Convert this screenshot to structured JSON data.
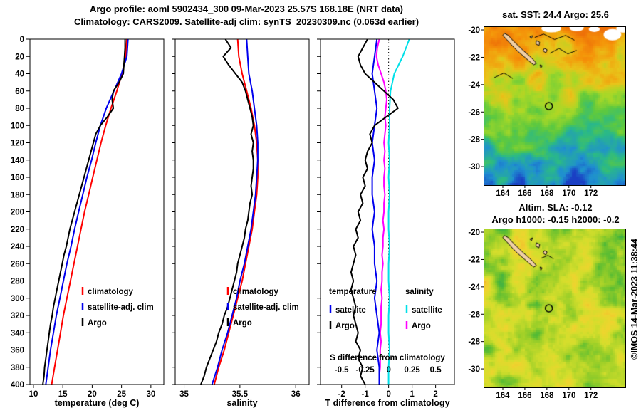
{
  "header": {
    "title_line1": "Argo profile: aoml 5902434_300 09-Mar-2023 25.57S 168.18E (NRT data)",
    "title_line2": "Climatology: CARS2009. Satellite-adj clim: synTS_20230309.nc (0.063d earlier)"
  },
  "watermark": "©IMOS 14-Mar-2023 11:38:44",
  "legends": {
    "profile": [
      {
        "label": "climatology",
        "color": "#ff0000"
      },
      {
        "label": "satellite-adj. clim",
        "color": "#0000ee"
      },
      {
        "label": "Argo",
        "color": "#000000"
      }
    ],
    "difference": {
      "col1_header": "temperature",
      "col2_header": "salinity",
      "col1": [
        {
          "label": "satellite",
          "color": "#0000ee"
        },
        {
          "label": "Argo",
          "color": "#000000"
        }
      ],
      "col2": [
        {
          "label": "satellite",
          "color": "#00e0e8"
        },
        {
          "label": "Argo",
          "color": "#ff00ff"
        }
      ]
    }
  },
  "map_islands": [
    [
      [
        164.15,
        -20.25
      ],
      [
        164.5,
        -20.4
      ],
      [
        164.95,
        -20.8
      ],
      [
        165.4,
        -21.15
      ],
      [
        165.85,
        -21.5
      ],
      [
        166.35,
        -21.85
      ],
      [
        166.8,
        -22.2
      ],
      [
        167.05,
        -22.45
      ],
      [
        166.8,
        -22.55
      ],
      [
        166.35,
        -22.25
      ],
      [
        165.85,
        -21.9
      ],
      [
        165.35,
        -21.55
      ],
      [
        164.85,
        -21.15
      ],
      [
        164.35,
        -20.7
      ],
      [
        164.0,
        -20.4
      ]
    ],
    [
      [
        166.45,
        -20.5
      ],
      [
        166.7,
        -20.42
      ],
      [
        166.6,
        -20.62
      ]
    ],
    [
      [
        167.05,
        -20.78
      ],
      [
        167.35,
        -20.9
      ],
      [
        167.28,
        -21.15
      ],
      [
        167.0,
        -21.02
      ]
    ],
    [
      [
        167.78,
        -21.35
      ],
      [
        168.02,
        -21.45
      ],
      [
        167.9,
        -21.68
      ],
      [
        167.65,
        -21.52
      ]
    ],
    [
      [
        167.38,
        -22.55
      ],
      [
        167.58,
        -22.62
      ],
      [
        167.45,
        -22.78
      ]
    ]
  ],
  "chart_data": [
    {
      "type": "line",
      "key": "temperature",
      "xlabel": "temperature (deg C)",
      "xlim": [
        9.4,
        32.2
      ],
      "ylim": [
        0,
        400
      ],
      "xticks": [
        10,
        15,
        20,
        25,
        30
      ],
      "ytick_step": 20,
      "ytick_labels": true,
      "series": [
        {
          "name": "climatology",
          "color": "#ff0000",
          "depth": [
            0,
            20,
            40,
            60,
            80,
            100,
            120,
            140,
            160,
            180,
            200,
            220,
            240,
            260,
            280,
            300,
            320,
            340,
            360,
            380,
            400
          ],
          "values": [
            25.9,
            25.7,
            25.1,
            24.2,
            23.2,
            22.3,
            21.5,
            20.8,
            20.1,
            19.4,
            18.7,
            18.1,
            17.5,
            16.9,
            16.3,
            15.7,
            15.1,
            14.6,
            14.1,
            13.6,
            13.1
          ]
        },
        {
          "name": "satellite-adj. clim",
          "color": "#0000ee",
          "depth": [
            0,
            20,
            40,
            60,
            80,
            100,
            120,
            140,
            160,
            180,
            200,
            220,
            240,
            260,
            280,
            300,
            320,
            340,
            360,
            380,
            400
          ],
          "values": [
            26.1,
            25.9,
            25.0,
            23.7,
            22.4,
            21.4,
            20.6,
            19.9,
            19.1,
            18.4,
            17.7,
            17.0,
            16.4,
            15.7,
            15.1,
            14.5,
            13.9,
            13.4,
            12.9,
            12.5,
            12.1
          ]
        },
        {
          "name": "Argo",
          "color": "#000000",
          "depth": [
            0,
            10,
            20,
            30,
            40,
            50,
            60,
            70,
            80,
            90,
            100,
            110,
            120,
            130,
            140,
            150,
            160,
            170,
            180,
            190,
            200,
            210,
            220,
            230,
            240,
            250,
            260,
            270,
            280,
            290,
            300,
            310,
            320,
            330,
            340,
            350,
            360,
            370,
            380,
            390,
            400
          ],
          "values": [
            25.6,
            25.6,
            25.5,
            25.4,
            25.3,
            24.6,
            23.6,
            23.4,
            23.6,
            22.6,
            21.4,
            20.6,
            20.2,
            19.8,
            19.4,
            19.0,
            18.6,
            18.2,
            17.8,
            17.4,
            17.0,
            16.6,
            16.2,
            15.9,
            15.6,
            15.2,
            14.9,
            14.6,
            14.3,
            14.0,
            13.7,
            13.4,
            13.2,
            12.9,
            12.7,
            12.5,
            12.3,
            12.1,
            11.9,
            11.8,
            11.6
          ]
        }
      ]
    },
    {
      "type": "line",
      "key": "salinity",
      "xlabel": "salinity",
      "xlim": [
        34.92,
        36.12
      ],
      "ylim": [
        0,
        400
      ],
      "xticks": [
        35,
        35.5,
        36
      ],
      "ytick_step": 20,
      "ytick_labels": false,
      "series": [
        {
          "name": "climatology",
          "color": "#ff0000",
          "depth": [
            0,
            20,
            40,
            60,
            80,
            100,
            120,
            140,
            160,
            180,
            200,
            220,
            240,
            260,
            280,
            300,
            320,
            340,
            360,
            380,
            400
          ],
          "values": [
            35.48,
            35.49,
            35.52,
            35.56,
            35.6,
            35.63,
            35.65,
            35.66,
            35.66,
            35.65,
            35.63,
            35.61,
            35.58,
            35.55,
            35.52,
            35.48,
            35.44,
            35.4,
            35.36,
            35.31,
            35.27
          ]
        },
        {
          "name": "satellite-adj. clim",
          "color": "#0000ee",
          "depth": [
            0,
            20,
            40,
            60,
            80,
            100,
            120,
            140,
            160,
            180,
            200,
            220,
            240,
            260,
            280,
            300,
            320,
            340,
            360,
            380,
            400
          ],
          "values": [
            35.56,
            35.57,
            35.58,
            35.61,
            35.63,
            35.65,
            35.66,
            35.66,
            35.65,
            35.64,
            35.62,
            35.6,
            35.57,
            35.54,
            35.5,
            35.47,
            35.43,
            35.39,
            35.34,
            35.3,
            35.25
          ]
        },
        {
          "name": "Argo",
          "color": "#000000",
          "depth": [
            0,
            10,
            20,
            30,
            40,
            50,
            60,
            70,
            80,
            90,
            100,
            110,
            120,
            130,
            140,
            150,
            160,
            170,
            180,
            190,
            200,
            210,
            220,
            230,
            240,
            250,
            260,
            270,
            280,
            290,
            300,
            310,
            320,
            330,
            340,
            350,
            360,
            370,
            380,
            390,
            400
          ],
          "values": [
            35.37,
            35.42,
            35.35,
            35.4,
            35.46,
            35.52,
            35.55,
            35.57,
            35.59,
            35.61,
            35.62,
            35.6,
            35.62,
            35.61,
            35.62,
            35.62,
            35.61,
            35.6,
            35.61,
            35.59,
            35.58,
            35.57,
            35.55,
            35.54,
            35.52,
            35.5,
            35.48,
            35.47,
            35.45,
            35.43,
            35.41,
            35.39,
            35.36,
            35.34,
            35.31,
            35.29,
            35.26,
            35.23,
            35.2,
            35.18,
            35.15
          ]
        }
      ]
    },
    {
      "type": "line",
      "key": "difference",
      "xlabel": "T difference from climatology",
      "xlim": [
        -2.9,
        2.8
      ],
      "ylim": [
        0,
        400
      ],
      "xticks": [
        -2,
        -1,
        0,
        1,
        2
      ],
      "ytick_step": 20,
      "ytick_labels": false,
      "zero_line": true,
      "s_axis": {
        "label": "S difference from climatology",
        "ticks": [
          -0.5,
          -0.25,
          0,
          0.25,
          0.5
        ],
        "scale": 4
      },
      "series": [
        {
          "name": "satellite S",
          "color": "#00e0e8",
          "axis": "S",
          "depth": [
            0,
            20,
            40,
            60,
            80,
            100,
            120,
            140,
            160,
            180,
            200,
            220,
            240,
            260,
            280,
            300,
            320,
            340,
            360,
            380,
            400
          ],
          "values": [
            0.22,
            0.15,
            0.06,
            0.02,
            0.01,
            0.01,
            0.0,
            0.01,
            0.0,
            0.01,
            0.0,
            0.0,
            0.01,
            0.0,
            0.0,
            0.01,
            0.0,
            0.0,
            0.01,
            0.0,
            0.0
          ]
        },
        {
          "name": "Argo S",
          "color": "#ff00ff",
          "axis": "S",
          "depth": [
            0,
            10,
            20,
            30,
            40,
            50,
            60,
            70,
            80,
            90,
            100,
            110,
            120,
            130,
            140,
            150,
            160,
            170,
            180,
            190,
            200,
            210,
            220,
            230,
            240,
            250,
            260,
            270,
            280,
            290,
            300,
            310,
            320,
            330,
            340,
            350,
            360,
            370,
            380,
            390,
            400
          ],
          "values": [
            -0.1,
            -0.12,
            -0.13,
            -0.11,
            -0.08,
            -0.05,
            -0.03,
            -0.02,
            -0.03,
            -0.04,
            -0.03,
            -0.04,
            -0.05,
            -0.04,
            -0.05,
            -0.04,
            -0.05,
            -0.05,
            -0.04,
            -0.05,
            -0.05,
            -0.06,
            -0.05,
            -0.06,
            -0.06,
            -0.07,
            -0.06,
            -0.07,
            -0.07,
            -0.08,
            -0.07,
            -0.08,
            -0.08,
            -0.08,
            -0.09,
            -0.08,
            -0.09,
            -0.09,
            -0.09,
            -0.1,
            -0.1
          ]
        },
        {
          "name": "satellite T",
          "color": "#0000ee",
          "depth": [
            0,
            20,
            40,
            60,
            80,
            100,
            120,
            140,
            160,
            180,
            200,
            220,
            240,
            260,
            280,
            300,
            320,
            340,
            360,
            380,
            400
          ],
          "values": [
            -0.5,
            -0.6,
            -0.7,
            -0.6,
            -0.5,
            -0.6,
            -0.7,
            -0.6,
            -0.7,
            -0.7,
            -0.6,
            -0.7,
            -0.6,
            -0.6,
            -0.5,
            -0.6,
            -0.5,
            -0.4,
            -0.5,
            -0.4,
            -0.4
          ]
        },
        {
          "name": "Argo T",
          "color": "#000000",
          "depth": [
            0,
            10,
            20,
            30,
            40,
            50,
            60,
            70,
            80,
            90,
            100,
            110,
            120,
            130,
            140,
            150,
            160,
            170,
            180,
            190,
            200,
            210,
            220,
            230,
            240,
            250,
            260,
            270,
            280,
            290,
            300,
            310,
            320,
            330,
            340,
            350,
            360,
            370,
            380,
            390,
            400
          ],
          "values": [
            -0.9,
            -1.1,
            -1.3,
            -1.2,
            -1.0,
            -0.6,
            -0.2,
            0.2,
            0.4,
            -0.1,
            -0.6,
            -0.8,
            -0.7,
            -0.9,
            -1.0,
            -0.9,
            -1.1,
            -1.0,
            -1.2,
            -1.1,
            -1.3,
            -1.2,
            -1.4,
            -1.3,
            -1.5,
            -1.4,
            -1.5,
            -1.6,
            -1.5,
            -1.6,
            -1.5,
            -1.4,
            -1.5,
            -1.4,
            -1.3,
            -1.4,
            -1.2,
            -1.3,
            -1.1,
            -1.2,
            -1.0
          ]
        }
      ]
    },
    {
      "type": "heatmap",
      "key": "sst-map",
      "title": "sat. SST: 24.4 Argo: 25.6",
      "lon_range": [
        162.32,
        175.12
      ],
      "lat_range": [
        -19.79,
        -31.35
      ],
      "lon_ticks": [
        164,
        166,
        168,
        170,
        172
      ],
      "lat_ticks": [
        -20,
        -22,
        -24,
        -26,
        -28,
        -30
      ],
      "marker": {
        "lon": 168.18,
        "lat": -25.57
      },
      "palette": [
        "#1a3fc4",
        "#1f8fd0",
        "#2ab987",
        "#5ec93e",
        "#a8d827",
        "#e8c51a",
        "#f59409",
        "#ee7008"
      ],
      "clouds": [
        [
          168.4,
          -19.9,
          0.9,
          0.28
        ],
        [
          170.7,
          -19.85,
          0.65,
          0.25
        ],
        [
          173.95,
          -20.35,
          0.8,
          0.42
        ],
        [
          172.3,
          -19.95,
          0.5,
          0.2
        ],
        [
          174.9,
          -19.9,
          0.6,
          0.3
        ]
      ],
      "contours": [
        [
          [
            166.9,
            -20.55
          ],
          [
            167.7,
            -20.3
          ],
          [
            168.7,
            -20.7
          ],
          [
            169.7,
            -20.4
          ],
          [
            170.5,
            -20.75
          ]
        ],
        [
          [
            168.3,
            -21.7
          ],
          [
            169.1,
            -21.35
          ],
          [
            169.9,
            -21.75
          ],
          [
            170.7,
            -21.5
          ]
        ],
        [
          [
            163.2,
            -23.5
          ],
          [
            164.1,
            -23.15
          ],
          [
            164.9,
            -23.55
          ]
        ]
      ]
    },
    {
      "type": "heatmap",
      "key": "sla-map",
      "titles": [
        "Altim. SLA: -0.12",
        "Argo h1000: -0.15 h2000: -0.2"
      ],
      "lon_range": [
        162.32,
        175.12
      ],
      "lat_range": [
        -19.79,
        -31.35
      ],
      "lon_ticks": [
        164,
        166,
        168,
        170,
        172
      ],
      "lat_ticks": [
        -20,
        -22,
        -24,
        -26,
        -28,
        -30
      ],
      "marker": {
        "lon": 168.18,
        "lat": -25.57
      },
      "palette": [
        "#1f9e66",
        "#55bb33",
        "#9ccf28",
        "#d4de2c",
        "#efd42e",
        "#f2b02a"
      ],
      "contours": [
        [
          [
            167.5,
            -21.9
          ],
          [
            168.1,
            -21.7
          ],
          [
            168.6,
            -21.95
          ]
        ]
      ]
    }
  ]
}
